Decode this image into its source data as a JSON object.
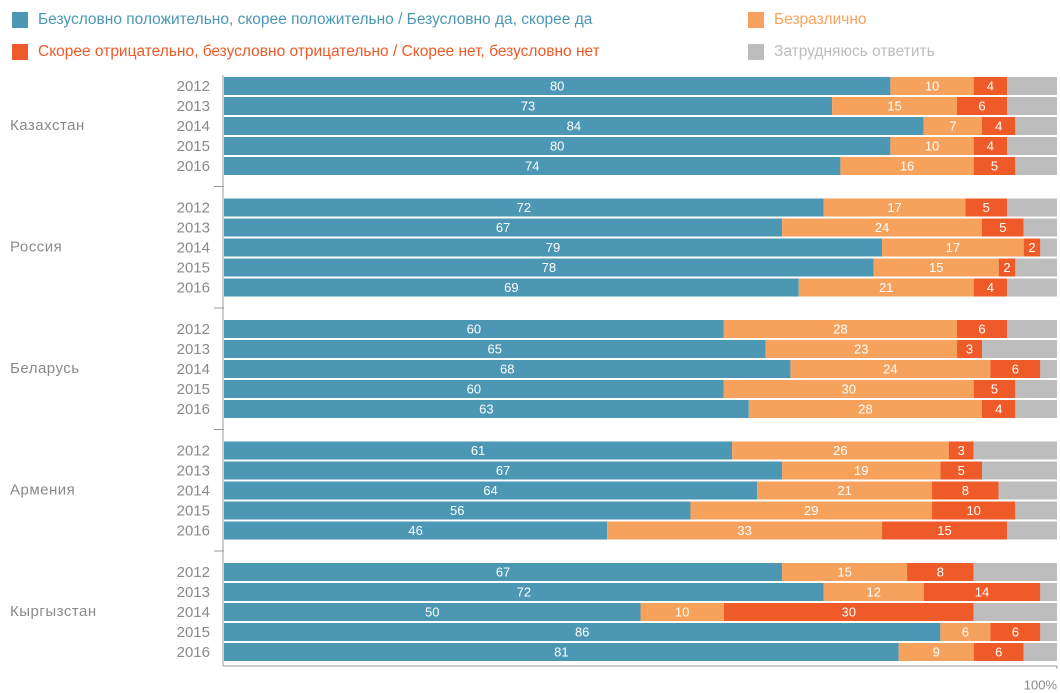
{
  "chart_data": {
    "type": "stacked-horizontal-bar",
    "groups": [
      {
        "name": "Казахстан",
        "categories": [
          "2012",
          "2013",
          "2014",
          "2015",
          "2016"
        ]
      },
      {
        "name": "Россия",
        "categories": [
          "2012",
          "2013",
          "2014",
          "2015",
          "2016"
        ]
      },
      {
        "name": "Беларусь",
        "categories": [
          "2012",
          "2013",
          "2014",
          "2015",
          "2016"
        ]
      },
      {
        "name": "Армения",
        "categories": [
          "2012",
          "2013",
          "2014",
          "2015",
          "2016"
        ]
      },
      {
        "name": "Кыргызстан",
        "categories": [
          "2012",
          "2013",
          "2014",
          "2015",
          "2016"
        ]
      }
    ],
    "series": [
      {
        "name": "Безусловно положительно, скорее положительно / Безусловно да, скорее да",
        "color": "#4b97b4",
        "labels": true,
        "values": [
          80,
          73,
          84,
          80,
          74,
          72,
          67,
          79,
          78,
          69,
          60,
          65,
          68,
          60,
          63,
          61,
          67,
          64,
          56,
          46,
          67,
          72,
          50,
          86,
          81
        ]
      },
      {
        "name": "Безразлично",
        "color": "#f7a25c",
        "labels": true,
        "values": [
          10,
          15,
          7,
          10,
          16,
          17,
          24,
          17,
          15,
          21,
          28,
          23,
          24,
          30,
          28,
          26,
          19,
          21,
          29,
          33,
          15,
          12,
          10,
          6,
          9
        ]
      },
      {
        "name": "Скорее отрицательно, безусловно отрицательно / Скорее нет, безусловно нет",
        "color": "#ee5a28",
        "labels": true,
        "values": [
          4,
          6,
          4,
          4,
          5,
          5,
          5,
          2,
          2,
          4,
          6,
          3,
          6,
          5,
          4,
          3,
          5,
          8,
          10,
          15,
          8,
          14,
          30,
          6,
          6
        ]
      },
      {
        "name": "Затрудняюсь ответить",
        "color": "#bdbdbd",
        "labels": false,
        "values": [
          6,
          6,
          5,
          6,
          5,
          6,
          4,
          2,
          5,
          6,
          6,
          9,
          2,
          5,
          5,
          10,
          9,
          7,
          5,
          6,
          10,
          2,
          10,
          2,
          4
        ]
      }
    ],
    "xlim": [
      0,
      100
    ],
    "xticks": [
      {
        "value": 100,
        "label": "100%"
      }
    ]
  }
}
